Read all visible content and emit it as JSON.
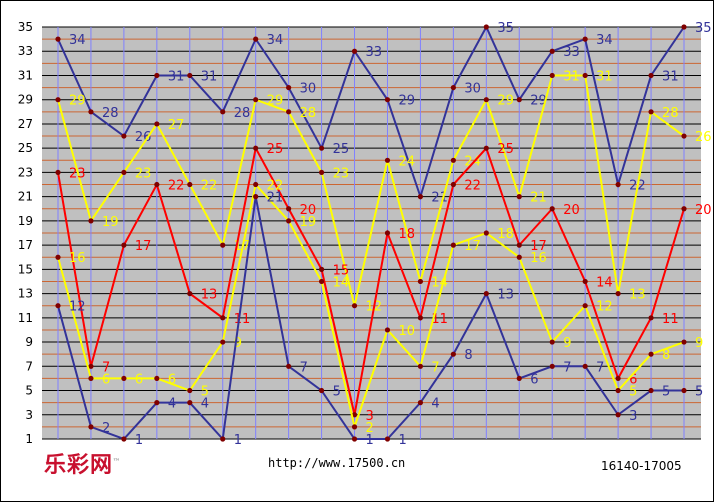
{
  "footer": {
    "logo": "乐彩网",
    "logo_mark": "™",
    "url": "http://www.17500.cn",
    "range": "16140-17005"
  },
  "chart_data": {
    "type": "line",
    "title": "",
    "xlabel": "",
    "ylabel": "",
    "grid": true,
    "ylim": [
      1,
      35
    ],
    "yticks": [
      1,
      3,
      5,
      7,
      9,
      11,
      13,
      15,
      17,
      19,
      21,
      23,
      25,
      27,
      29,
      31,
      33,
      35
    ],
    "x_count": 20,
    "series": [
      {
        "color": "#333399",
        "values": [
          34,
          28,
          26,
          31,
          31,
          28,
          34,
          30,
          25,
          33,
          29,
          21,
          30,
          35,
          29,
          33,
          34,
          22,
          31,
          35
        ]
      },
      {
        "color": "#ffff00",
        "values": [
          29,
          19,
          23,
          27,
          22,
          17,
          29,
          28,
          23,
          12,
          24,
          14,
          24,
          29,
          21,
          31,
          31,
          13,
          28,
          26
        ]
      },
      {
        "color": "#ff0000",
        "values": [
          23,
          7,
          17,
          22,
          13,
          11,
          25,
          20,
          15,
          3,
          18,
          11,
          22,
          25,
          17,
          20,
          14,
          6,
          11,
          20
        ]
      },
      {
        "color": "#ffff00",
        "values": [
          16,
          6,
          6,
          6,
          5,
          9,
          22,
          19,
          14,
          2,
          10,
          7,
          17,
          18,
          16,
          9,
          12,
          5,
          8,
          9
        ]
      },
      {
        "color": "#333399",
        "values": [
          12,
          2,
          1,
          4,
          4,
          1,
          21,
          7,
          5,
          1,
          1,
          4,
          8,
          13,
          6,
          7,
          7,
          3,
          5,
          5
        ]
      }
    ]
  }
}
